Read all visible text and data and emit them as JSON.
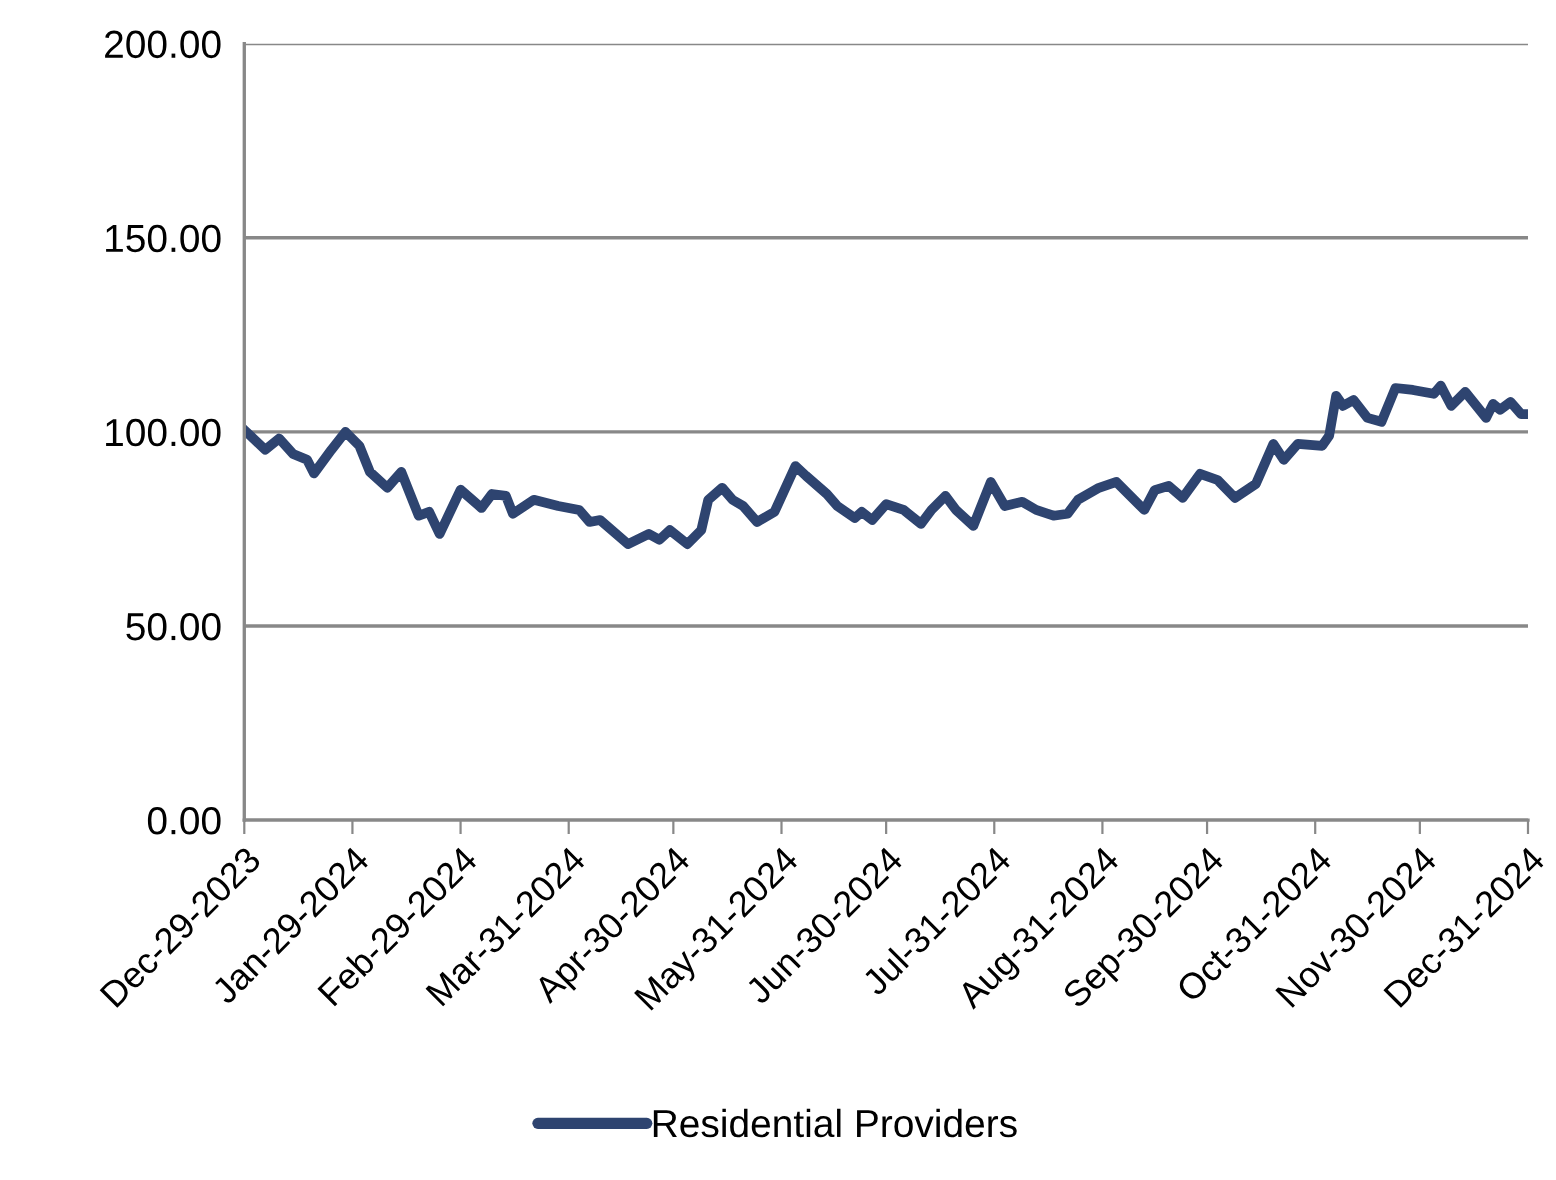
{
  "chart_data": {
    "type": "line",
    "x": [
      "2023-12-29",
      "2024-01-04",
      "2024-01-08",
      "2024-01-12",
      "2024-01-16",
      "2024-01-18",
      "2024-01-23",
      "2024-01-27",
      "2024-01-31",
      "2024-02-03",
      "2024-02-08",
      "2024-02-12",
      "2024-02-17",
      "2024-02-20",
      "2024-02-23",
      "2024-02-29",
      "2024-03-06",
      "2024-03-09",
      "2024-03-13",
      "2024-03-15",
      "2024-03-21",
      "2024-03-28",
      "2024-04-03",
      "2024-04-06",
      "2024-04-09",
      "2024-04-17",
      "2024-04-23",
      "2024-04-26",
      "2024-04-29",
      "2024-05-04",
      "2024-05-08",
      "2024-05-10",
      "2024-05-14",
      "2024-05-17",
      "2024-05-20",
      "2024-05-24",
      "2024-05-29",
      "2024-06-04",
      "2024-06-07",
      "2024-06-13",
      "2024-06-16",
      "2024-06-21",
      "2024-06-23",
      "2024-06-26",
      "2024-06-30",
      "2024-07-05",
      "2024-07-10",
      "2024-07-13",
      "2024-07-17",
      "2024-07-20",
      "2024-07-25",
      "2024-07-30",
      "2024-08-03",
      "2024-08-08",
      "2024-08-12",
      "2024-08-17",
      "2024-08-21",
      "2024-08-24",
      "2024-08-30",
      "2024-09-04",
      "2024-09-12",
      "2024-09-15",
      "2024-09-19",
      "2024-09-23",
      "2024-09-28",
      "2024-10-03",
      "2024-10-08",
      "2024-10-14",
      "2024-10-19",
      "2024-10-22",
      "2024-10-26",
      "2024-11-02",
      "2024-11-04",
      "2024-11-06",
      "2024-11-08",
      "2024-11-11",
      "2024-11-15",
      "2024-11-19",
      "2024-11-23",
      "2024-11-28",
      "2024-12-04",
      "2024-12-06",
      "2024-12-09",
      "2024-12-13",
      "2024-12-19",
      "2024-12-21",
      "2024-12-23",
      "2024-12-26",
      "2024-12-29",
      "2024-12-31"
    ],
    "series": [
      {
        "name": "Residential Providers",
        "color": "#2e4470",
        "values": [
          100.5,
          95.4,
          98.3,
          94.3,
          92.8,
          89.3,
          95.4,
          100.0,
          96.4,
          89.7,
          85.6,
          89.7,
          78.4,
          79.4,
          73.7,
          85.1,
          80.4,
          84.0,
          83.5,
          78.9,
          82.5,
          80.9,
          79.9,
          76.8,
          77.3,
          71.1,
          73.7,
          72.2,
          74.7,
          71.1,
          74.7,
          82.5,
          85.6,
          82.5,
          80.9,
          76.8,
          79.4,
          91.2,
          88.7,
          84.0,
          80.9,
          77.8,
          79.4,
          77.3,
          81.4,
          79.9,
          76.3,
          79.9,
          83.5,
          79.9,
          75.8,
          87.1,
          80.9,
          82.0,
          79.9,
          78.4,
          78.9,
          82.5,
          85.6,
          87.1,
          79.9,
          85.0,
          86.1,
          83.0,
          89.2,
          87.6,
          83.0,
          86.6,
          96.9,
          92.8,
          96.9,
          96.4,
          99.0,
          109.3,
          106.7,
          108.2,
          103.6,
          102.6,
          111.3,
          110.8,
          109.8,
          111.9,
          106.7,
          110.3,
          103.6,
          107.2,
          105.7,
          107.7,
          104.6,
          104.6
        ]
      }
    ],
    "xlim": [
      "2023-12-29",
      "2024-12-31"
    ],
    "xticks": [
      {
        "value": "2023-12-29",
        "label": "Dec-29-2023"
      },
      {
        "value": "2024-01-29",
        "label": "Jan-29-2024"
      },
      {
        "value": "2024-02-29",
        "label": "Feb-29-2024"
      },
      {
        "value": "2024-03-31",
        "label": "Mar-31-2024"
      },
      {
        "value": "2024-04-30",
        "label": "Apr-30-2024"
      },
      {
        "value": "2024-05-31",
        "label": "May-31-2024"
      },
      {
        "value": "2024-06-30",
        "label": "Jun-30-2024"
      },
      {
        "value": "2024-07-31",
        "label": "Jul-31-2024"
      },
      {
        "value": "2024-08-31",
        "label": "Aug-31-2024"
      },
      {
        "value": "2024-09-30",
        "label": "Sep-30-2024"
      },
      {
        "value": "2024-10-31",
        "label": "Oct-31-2024"
      },
      {
        "value": "2024-11-30",
        "label": "Nov-30-2024"
      },
      {
        "value": "2024-12-31",
        "label": "Dec-31-2024"
      }
    ],
    "ylim": [
      0,
      200
    ],
    "yticks": [
      {
        "value": 0,
        "label": "0.00"
      },
      {
        "value": 50,
        "label": "50.00"
      },
      {
        "value": 100,
        "label": "100.00"
      },
      {
        "value": 150,
        "label": "150.00"
      },
      {
        "value": 200,
        "label": "200.00"
      }
    ],
    "grid": "y",
    "legend": "bottom",
    "marker": "none",
    "line_style": "solid"
  }
}
